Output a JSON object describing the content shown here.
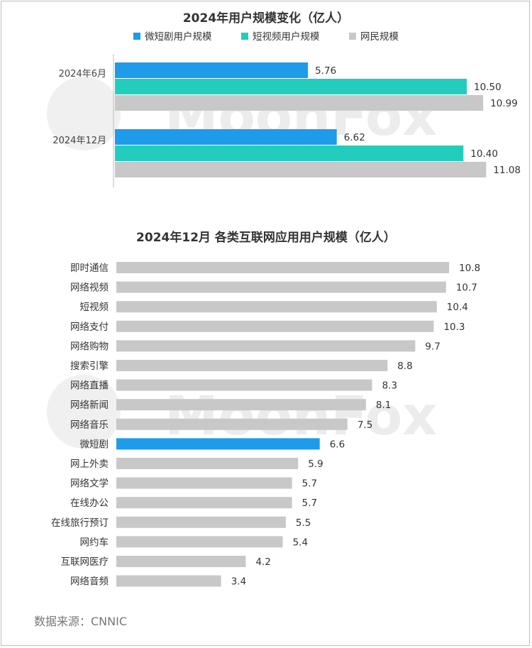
{
  "watermark": "MoonFox",
  "source": "数据来源：CNNIC",
  "colors": {
    "short_drama": "#1e9be9",
    "short_video": "#22cdbd",
    "netizen": "#c8c8c8"
  },
  "chart_data": [
    {
      "type": "bar",
      "orientation": "horizontal",
      "title": "2024年用户规模变化（亿人）",
      "legend_position": "top",
      "categories": [
        "2024年6月",
        "2024年12月"
      ],
      "series": [
        {
          "name": "微短剧用户规模",
          "color": "#1e9be9",
          "values": [
            5.76,
            6.62
          ],
          "labels": [
            "5.76",
            "6.62"
          ]
        },
        {
          "name": "短视频用户规模",
          "color": "#22cdbd",
          "values": [
            10.5,
            10.4
          ],
          "labels": [
            "10.50",
            "10.40"
          ]
        },
        {
          "name": "网民规模",
          "color": "#c8c8c8",
          "values": [
            10.99,
            11.08
          ],
          "labels": [
            "10.99",
            "11.08"
          ]
        }
      ],
      "xlim": [
        0,
        11.6
      ],
      "grid": false
    },
    {
      "type": "bar",
      "orientation": "horizontal",
      "title": "2024年12月 各类互联网应用用户规模（亿人）",
      "categories": [
        "即时通信",
        "网络视频",
        "短视频",
        "网络支付",
        "网络购物",
        "搜索引擎",
        "网络直播",
        "网络新闻",
        "网络音乐",
        "微短剧",
        "网上外卖",
        "网络文学",
        "在线办公",
        "在线旅行预订",
        "网约车",
        "互联网医疗",
        "网络音频"
      ],
      "values": [
        10.8,
        10.7,
        10.4,
        10.3,
        9.7,
        8.8,
        8.3,
        8.1,
        7.5,
        6.6,
        5.9,
        5.7,
        5.7,
        5.5,
        5.4,
        4.2,
        3.4
      ],
      "labels": [
        "10.8",
        "10.7",
        "10.4",
        "10.3",
        "9.7",
        "8.8",
        "8.3",
        "8.1",
        "7.5",
        "6.6",
        "5.9",
        "5.7",
        "5.7",
        "5.5",
        "5.4",
        "4.2",
        "3.4"
      ],
      "highlight": "微短剧",
      "highlight_color": "#1e9be9",
      "bar_color": "#c8c8c8",
      "xlim": [
        0,
        12.2
      ],
      "grid": false
    }
  ]
}
